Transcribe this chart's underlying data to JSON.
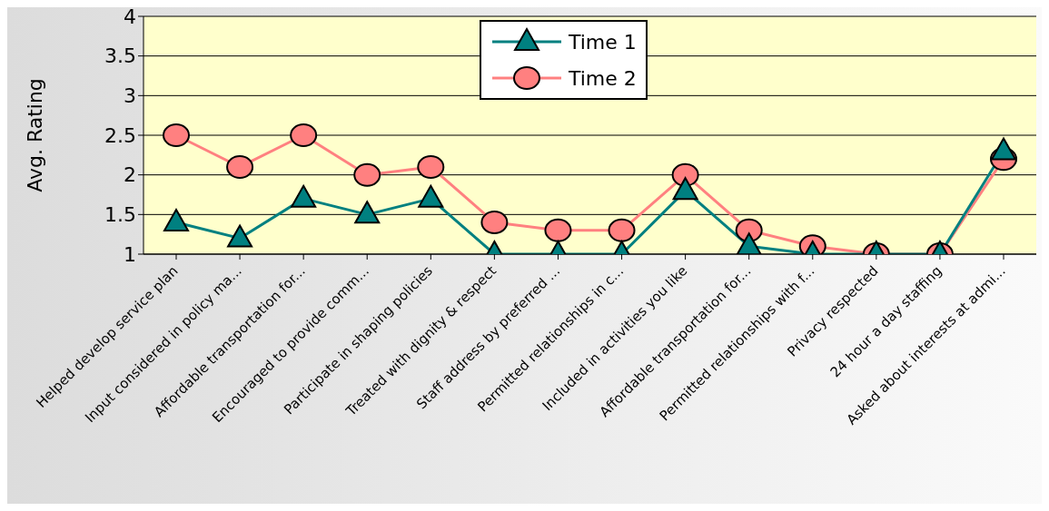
{
  "chart_data": {
    "type": "line",
    "ylabel": "Avg. Rating",
    "categories": [
      "Helped develop service plan",
      "Input considered in policy ma...",
      "Affordable transportation for...",
      "Encouraged to provide comm...",
      "Participate in shaping policies",
      "Treated with dignity & respect",
      "Staff address by preferred ...",
      "Permitted relationships in c...",
      "Included in activities you like",
      "Affordable transportation for...",
      "Permitted relationships with f...",
      "Privacy respected",
      "24 hour a day staffing",
      "Asked about interests at admi..."
    ],
    "series": [
      {
        "name": "Time 1",
        "color": "#008080",
        "marker": "triangle",
        "values": [
          1.4,
          1.2,
          1.7,
          1.5,
          1.7,
          1,
          1,
          1,
          1.8,
          1.1,
          1,
          1,
          1,
          2.3
        ]
      },
      {
        "name": "Time 2",
        "color": "#ff8080",
        "marker": "circle",
        "values": [
          2.5,
          2.1,
          2.5,
          2,
          2.1,
          1.4,
          1.3,
          1.3,
          2,
          1.3,
          1.1,
          1,
          1,
          2.2
        ]
      }
    ],
    "ylim": [
      1,
      4
    ],
    "yticks": [
      1,
      1.5,
      2,
      2.5,
      3,
      3.5,
      4
    ],
    "grid": "y",
    "legend": "top",
    "line_style": "solid"
  }
}
